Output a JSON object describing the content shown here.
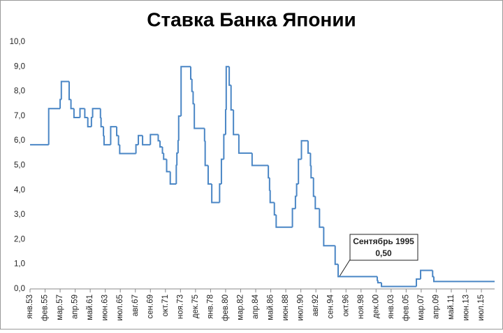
{
  "chart_data": {
    "type": "step-line",
    "title": "Ставка Банка Японии",
    "xlim": [
      "янв.53",
      "май.17"
    ],
    "xticks": [
      "янв.53",
      "фев.55",
      "мар.57",
      "апр.59",
      "май.61",
      "июн.63",
      "июл.65",
      "авг.67",
      "сен.69",
      "окт.71",
      "ноя.73",
      "дек.75",
      "янв.78",
      "фев.80",
      "мар.82",
      "апр.84",
      "май.86",
      "июн.88",
      "июл.90",
      "авг.92",
      "сен.94",
      "окт.96",
      "ноя.98",
      "дек.00",
      "янв.03",
      "фев.05",
      "мар.07",
      "апр.09",
      "май.11",
      "июн.13",
      "июл.15"
    ],
    "ylim": [
      0,
      10
    ],
    "yticks": [
      {
        "value": 0,
        "label": "0,0"
      },
      {
        "value": 1,
        "label": "1,0"
      },
      {
        "value": 2,
        "label": "2,0"
      },
      {
        "value": 3,
        "label": "3,0"
      },
      {
        "value": 4,
        "label": "4,0"
      },
      {
        "value": 5,
        "label": "5,0"
      },
      {
        "value": 6,
        "label": "6,0"
      },
      {
        "value": 7,
        "label": "7,0"
      },
      {
        "value": 8,
        "label": "8,0"
      },
      {
        "value": 9,
        "label": "9,0"
      },
      {
        "value": 10,
        "label": "10,0"
      }
    ],
    "grid": false,
    "series": [
      {
        "color": "#4a86c5",
        "x": [
          "янв.53",
          "авг.55",
          "мар.57",
          "май.57",
          "июн.58",
          "сен.58",
          "фев.59",
          "дек.59",
          "авг.60",
          "янв.61",
          "июл.61",
          "сен.61",
          "окт.62",
          "ноя.62",
          "мар.63",
          "апр.63",
          "мар.64",
          "янв.65",
          "апр.65",
          "июн.65",
          "сен.67",
          "янв.68",
          "авг.68",
          "сен.69",
          "окт.70",
          "янв.71",
          "май.71",
          "июл.71",
          "дек.71",
          "июн.72",
          "апр.73",
          "май.73",
          "июл.73",
          "авг.73",
          "дек.73",
          "апр.75",
          "июн.75",
          "авг.75",
          "окт.75",
          "мар.77",
          "апр.77",
          "сен.77",
          "мар.78",
          "апр.79",
          "июл.79",
          "ноя.79",
          "фев.80",
          "мар.80",
          "авг.80",
          "ноя.80",
          "мар.81",
          "дек.81",
          "окт.83",
          "янв.86",
          "мар.86",
          "апр.86",
          "ноя.86",
          "фев.87",
          "май.89",
          "окт.89",
          "дек.89",
          "мар.90",
          "авг.90",
          "июл.91",
          "ноя.91",
          "дек.91",
          "апр.92",
          "июл.92",
          "фев.93",
          "сен.93",
          "апр.95",
          "сен.95",
          "фев.01",
          "мар.01",
          "сен.01",
          "июл.06",
          "фев.07",
          "окт.08",
          "дек.08",
          "май.17"
        ],
        "values": [
          5.84,
          7.3,
          7.67,
          8.4,
          7.67,
          7.3,
          6.94,
          7.3,
          6.94,
          6.57,
          6.94,
          7.3,
          6.94,
          6.57,
          6.21,
          5.84,
          6.57,
          6.21,
          5.84,
          5.48,
          5.84,
          6.21,
          5.84,
          6.25,
          6.0,
          5.75,
          5.5,
          5.25,
          4.75,
          4.25,
          5.0,
          5.5,
          6.0,
          7.0,
          9.0,
          8.5,
          8.0,
          7.5,
          6.5,
          6.0,
          5.0,
          4.25,
          3.5,
          4.25,
          5.25,
          6.25,
          7.25,
          9.0,
          8.25,
          7.25,
          6.25,
          5.5,
          5.0,
          4.5,
          4.0,
          3.5,
          3.0,
          2.5,
          3.25,
          3.75,
          4.25,
          5.25,
          6.0,
          5.5,
          5.0,
          4.5,
          3.75,
          3.25,
          2.5,
          1.75,
          1.0,
          0.5,
          0.35,
          0.25,
          0.1,
          0.4,
          0.75,
          0.5,
          0.3,
          0.3
        ]
      }
    ],
    "annotation": {
      "text": "Сентябрь 1995",
      "label": "0,50"
    }
  }
}
